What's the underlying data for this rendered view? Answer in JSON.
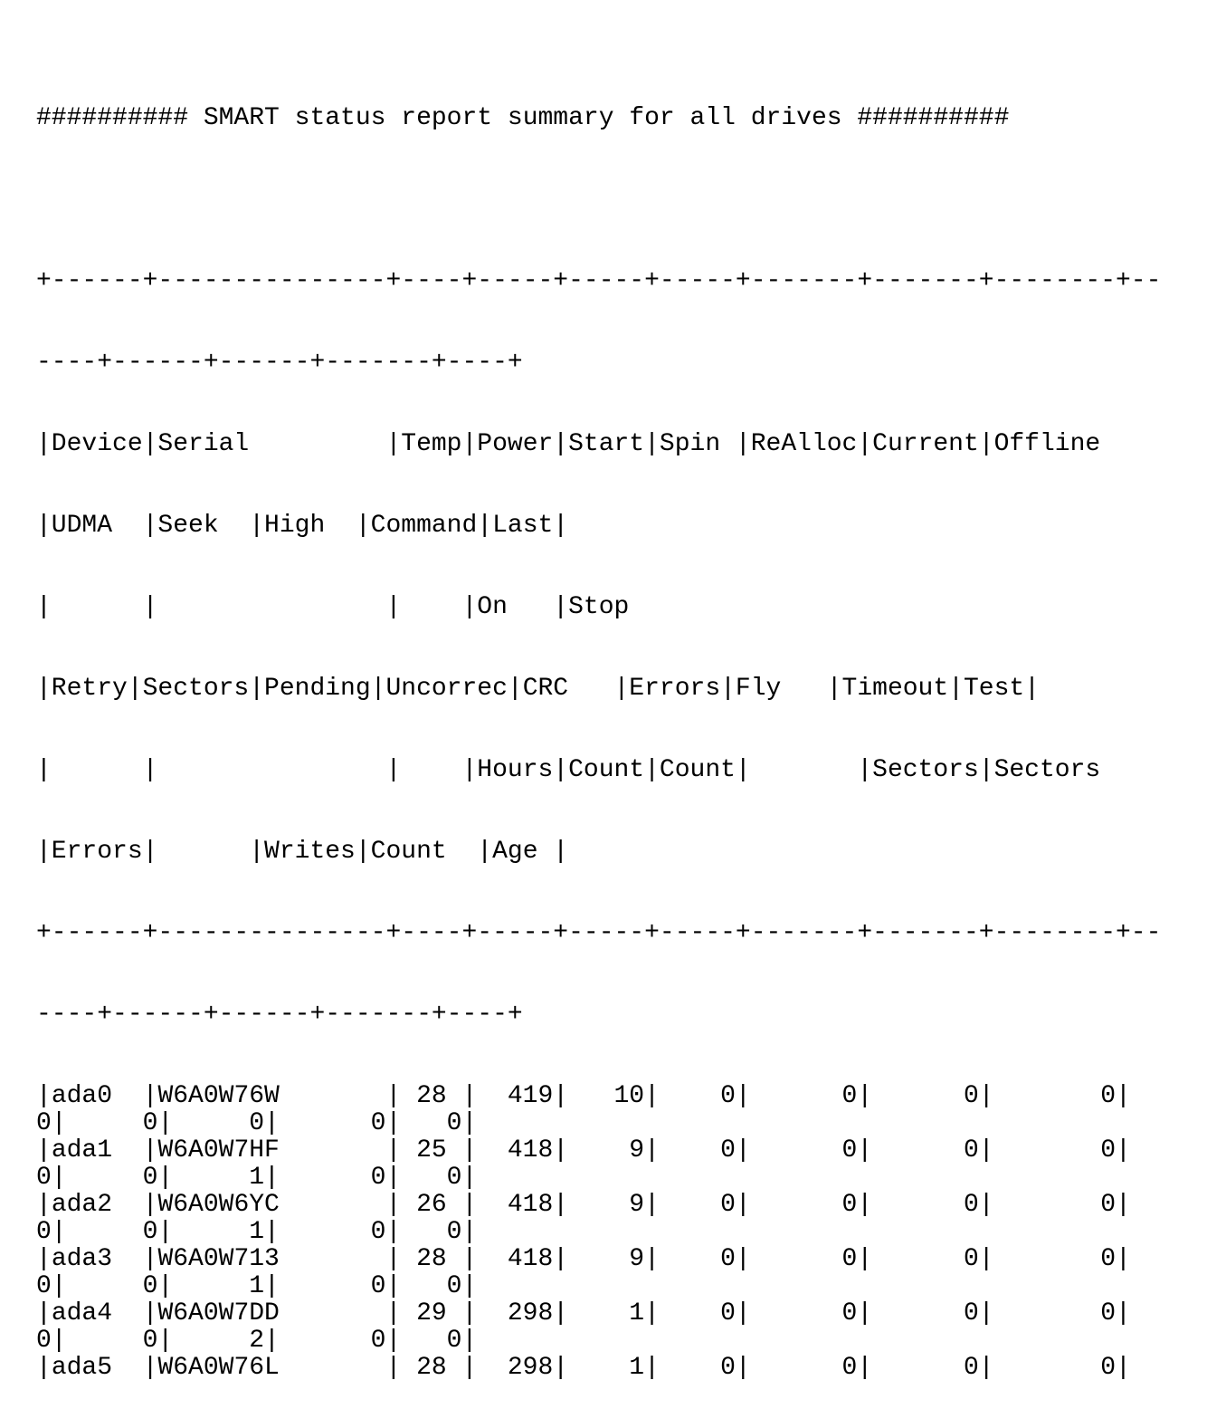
{
  "title": "########## SMART status report summary for all drives ##########",
  "table": {
    "border_top": [
      "+------+---------------+----+-----+-----+-----+-------+-------+--------+--",
      "----+------+------+-------+----+"
    ],
    "header_lines": [
      "|Device|Serial         |Temp|Power|Start|Spin |ReAlloc|Current|Offline",
      "|UDMA  |Seek  |High  |Command|Last|",
      "|      |               |    |On   |Stop",
      "|Retry|Sectors|Pending|Uncorrec|CRC   |Errors|Fly   |Timeout|Test|",
      "|      |               |    |Hours|Count|Count|       |Sectors|Sectors",
      "|Errors|      |Writes|Count  |Age |"
    ],
    "border_mid": [
      "+------+---------------+----+-----+-----+-----+-------+-------+--------+--",
      "----+------+------+-------+----+"
    ],
    "rows": [
      {
        "device": "ada0",
        "serial": "W6A0W76W",
        "temp": "28",
        "power_on_hours": "419",
        "start_stop_count": "10",
        "spin_retry_count": "0",
        "realloc_sectors": "0",
        "current_pending_sectors": "0",
        "offline_uncorrectable": "0",
        "udma_crc_errors": "0",
        "seek_errors": "0",
        "high_fly_writes": "0",
        "command_timeout_count": "0",
        "last_test_age": "0"
      },
      {
        "device": "ada1",
        "serial": "W6A0W7HF",
        "temp": "25",
        "power_on_hours": "418",
        "start_stop_count": "9",
        "spin_retry_count": "0",
        "realloc_sectors": "0",
        "current_pending_sectors": "0",
        "offline_uncorrectable": "0",
        "udma_crc_errors": "0",
        "seek_errors": "0",
        "high_fly_writes": "1",
        "command_timeout_count": "0",
        "last_test_age": "0"
      },
      {
        "device": "ada2",
        "serial": "W6A0W6YC",
        "temp": "26",
        "power_on_hours": "418",
        "start_stop_count": "9",
        "spin_retry_count": "0",
        "realloc_sectors": "0",
        "current_pending_sectors": "0",
        "offline_uncorrectable": "0",
        "udma_crc_errors": "0",
        "seek_errors": "0",
        "high_fly_writes": "1",
        "command_timeout_count": "0",
        "last_test_age": "0"
      },
      {
        "device": "ada3",
        "serial": "W6A0W713",
        "temp": "28",
        "power_on_hours": "418",
        "start_stop_count": "9",
        "spin_retry_count": "0",
        "realloc_sectors": "0",
        "current_pending_sectors": "0",
        "offline_uncorrectable": "0",
        "udma_crc_errors": "0",
        "seek_errors": "0",
        "high_fly_writes": "1",
        "command_timeout_count": "0",
        "last_test_age": "0"
      },
      {
        "device": "ada4",
        "serial": "W6A0W7DD",
        "temp": "29",
        "power_on_hours": "298",
        "start_stop_count": "1",
        "spin_retry_count": "0",
        "realloc_sectors": "0",
        "current_pending_sectors": "0",
        "offline_uncorrectable": "0",
        "udma_crc_errors": "0",
        "seek_errors": "0",
        "high_fly_writes": "2",
        "command_timeout_count": "0",
        "last_test_age": "0"
      },
      {
        "device": "ada5",
        "serial": "W6A0W76L",
        "temp": "28",
        "power_on_hours": "298",
        "start_stop_count": "1",
        "spin_retry_count": "0",
        "realloc_sectors": "0",
        "current_pending_sectors": "0",
        "offline_uncorrectable": "0"
      }
    ]
  }
}
